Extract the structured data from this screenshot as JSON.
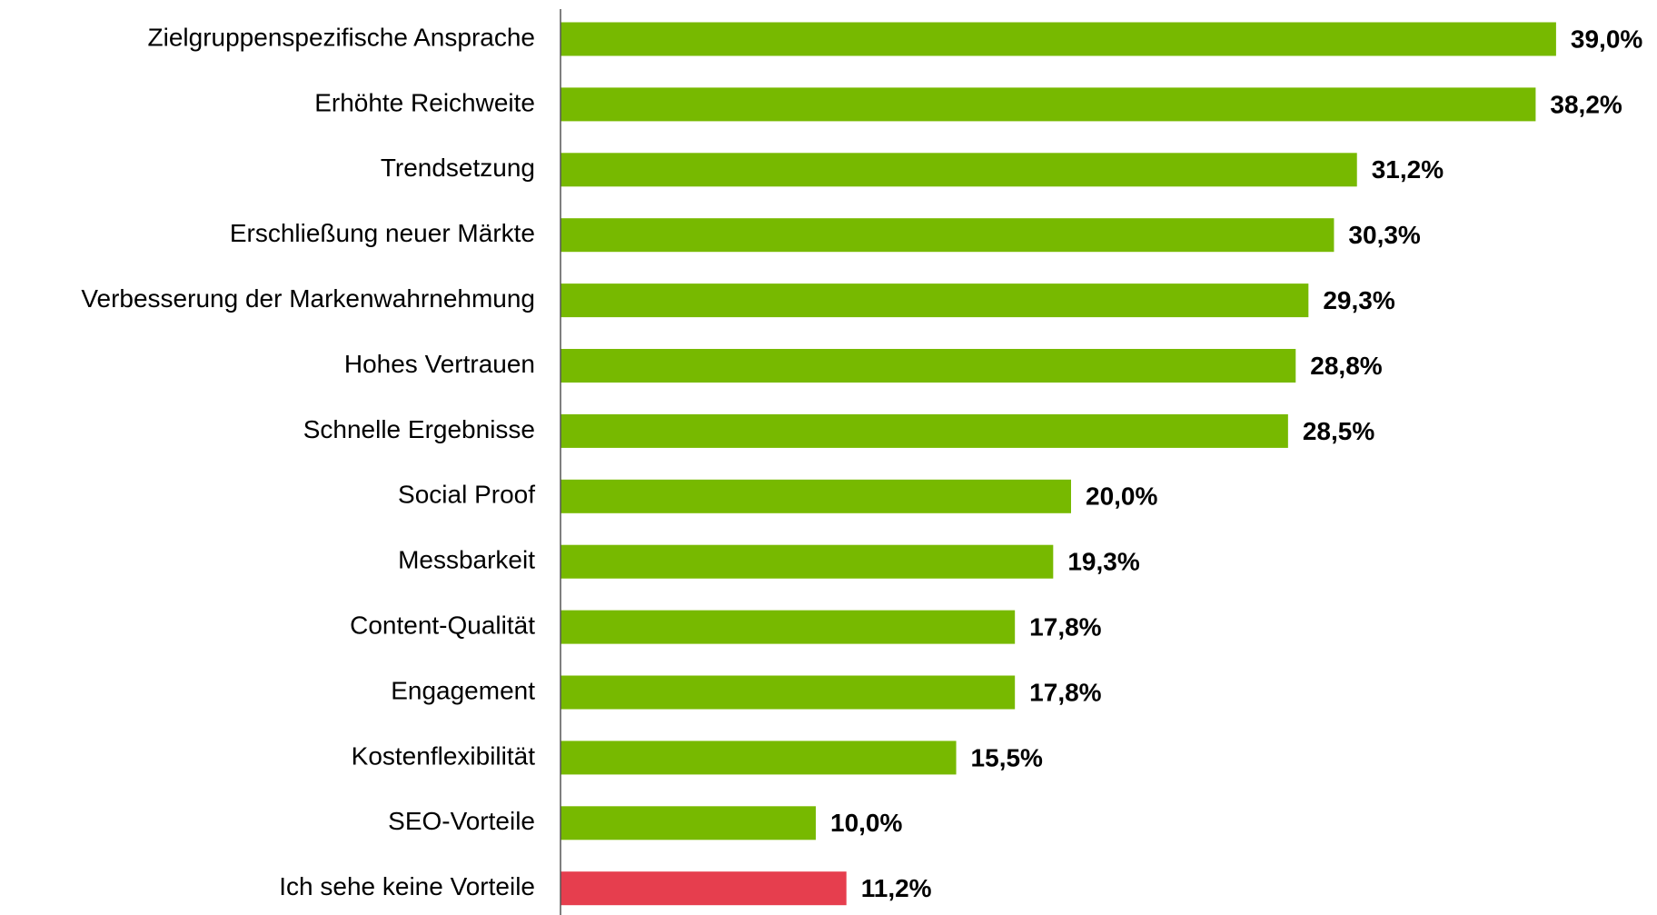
{
  "chart_data": {
    "type": "hbar",
    "categories": [
      "Zielgruppenspezifische Ansprache",
      "Erhöhte Reichweite",
      "Trendsetzung",
      "Erschließung neuer Märkte",
      "Verbesserung der Markenwahrnehmung",
      "Hohes Vertrauen",
      "Schnelle Ergebnisse",
      "Social Proof",
      "Messbarkeit",
      "Content-Qualität",
      "Engagement",
      "Kostenflexibilität",
      "SEO-Vorteile",
      "Ich sehe keine Vorteile"
    ],
    "values": [
      39.0,
      38.2,
      31.2,
      30.3,
      29.3,
      28.8,
      28.5,
      20.0,
      19.3,
      17.8,
      17.8,
      15.5,
      10.0,
      11.2
    ],
    "value_labels": [
      "39,0%",
      "38,2%",
      "31,2%",
      "30,3%",
      "29,3%",
      "28,8%",
      "28,5%",
      "20,0%",
      "19,3%",
      "17,8%",
      "17,8%",
      "15,5%",
      "10,0%",
      "11,2%"
    ],
    "colors": [
      "#77b900",
      "#77b900",
      "#77b900",
      "#77b900",
      "#77b900",
      "#77b900",
      "#77b900",
      "#77b900",
      "#77b900",
      "#77b900",
      "#77b900",
      "#77b900",
      "#77b900",
      "#e63e4e"
    ],
    "xlim": [
      0,
      40
    ]
  }
}
